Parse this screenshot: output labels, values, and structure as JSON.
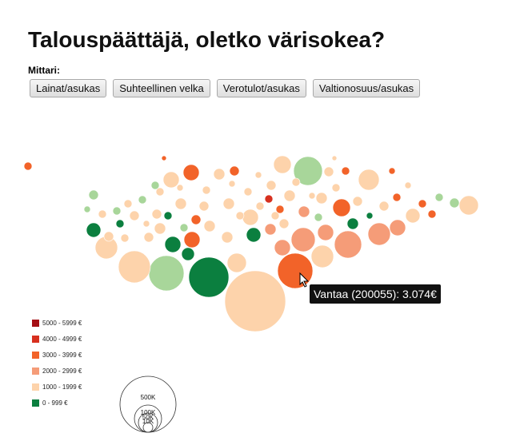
{
  "header": {
    "title": "Talouspäättäjä, oletko värisokea?"
  },
  "controls": {
    "label": "Mittari:",
    "buttons": [
      "Lainat/asukas",
      "Suhteellinen velka",
      "Verotulot/asukas",
      "Valtionosuus/asukas"
    ]
  },
  "tooltip": {
    "text": "Vantaa (200055): 3.074€"
  },
  "legend": {
    "items": [
      {
        "label": "5000 - 5999 €",
        "color": "#a50f15"
      },
      {
        "label": "4000 - 4999 €",
        "color": "#d7301f"
      },
      {
        "label": "3000 - 3999 €",
        "color": "#f26329"
      },
      {
        "label": "2000 - 2999 €",
        "color": "#f59c78"
      },
      {
        "label": "1000 - 1999 €",
        "color": "#fdd3ab"
      },
      {
        "label": "0 - 999 €",
        "color": "#0b7f3f"
      }
    ]
  },
  "size_legend": {
    "labels": [
      "500K",
      "100K",
      "50K",
      "10K"
    ]
  }
}
